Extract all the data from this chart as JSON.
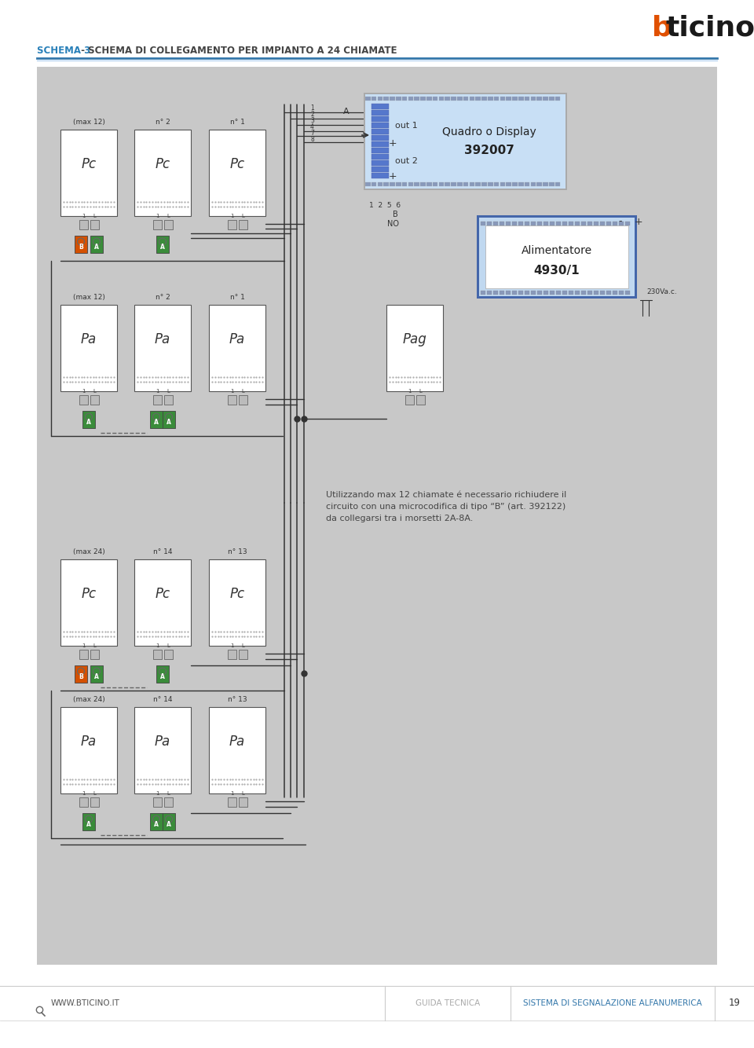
{
  "page_bg": "#ffffff",
  "panel_bg": "#c8c8c8",
  "title_schema": "SCHEMA 3",
  "title_dash": " - ",
  "title_rest": "SCHEMA DI COLLEGAMENTO PER IMPIANTO A 24 CHIAMATE",
  "title_color_schema": "#2980b9",
  "title_color_rest": "#444444",
  "logo_b_color": "#e05000",
  "logo_ticino_color": "#1a1a1a",
  "footer_left": "WWW.BTICINO.IT",
  "footer_center": "GUIDA TECNICA",
  "footer_right": "SISTEMA DI SEGNALAZIONE ALFANUMERICA",
  "footer_page": "19",
  "note_text": "Utilizzando max 12 chiamate é necessario richiudere il\ncircuito con una microcodifica di tipo “B” (art. 392122)\nda collegarsi tra i morsetti 2A-8A.",
  "quadro_title": "Quadro o Display",
  "quadro_code": "392007",
  "alimentatore_title": "Alimentatore",
  "alimentatore_code": "4930/1",
  "voltage_label": "230Va.c.",
  "color_orange": "#d45000",
  "color_green": "#3a8c3a",
  "color_wire": "#333333",
  "color_device_border": "#555555",
  "color_device_bg": "#ffffff",
  "color_quadro_bg": "#c8dff5",
  "color_quadro_border": "#5588bb",
  "color_strip": "#6688bb",
  "color_terminal_bg": "#bbbbbb",
  "color_connector_circle": "#888888"
}
